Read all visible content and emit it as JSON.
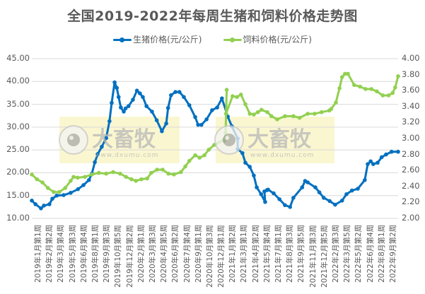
{
  "title": "全国2019-2022年每周生猪和饲料价格走势图",
  "legend": [
    {
      "label": "生猪价格(元/公斤)",
      "color": "#0070C0"
    },
    {
      "label": "饲料价格(元/公斤)",
      "color": "#92D050"
    }
  ],
  "watermark": {
    "text": "大畜牧",
    "url_text": "www.dxumu.com"
  },
  "chart_data": {
    "type": "line",
    "title": "全国2019-2022年每周生猪和饲料价格走势图",
    "xlabel": "",
    "ylabel_left": "生猪价格(元/公斤)",
    "ylabel_right": "饲料价格(元/公斤)",
    "ylim_left": [
      10,
      45
    ],
    "ylim_right": [
      2.0,
      4.0
    ],
    "yticks_left": [
      "10.00",
      "15.00",
      "20.00",
      "25.00",
      "30.00",
      "35.00",
      "40.00",
      "45.00"
    ],
    "yticks_right": [
      "2.00",
      "2.20",
      "2.40",
      "2.60",
      "2.80",
      "3.00",
      "3.20",
      "3.40",
      "3.60",
      "3.80",
      "4.00"
    ],
    "grid": true,
    "legend_position": "top",
    "x_tick_labels": [
      "2019年1月第1周",
      "2019年2月第2周",
      "2019年3月第4周",
      "2019年5月第3周",
      "2019年6月第4周",
      "2019年8月第1周",
      "2019年9月第3周",
      "2019年10月第5周",
      "2019年12月第2周",
      "2020年2月第1周",
      "2020年3月第3周",
      "2020年4月第5周",
      "2020年6月第2周",
      "2020年7月第4周",
      "2020年9月第1周",
      "2020年10月第3周",
      "2020年12月第1周",
      "2021年1月第2周",
      "2021年3月第1周",
      "2021年4月第2周",
      "2021年5月第4周",
      "2021年7月第1周",
      "2021年8月第3周",
      "2021年9月第5周",
      "2021年11月第3周",
      "2021年12月第5周",
      "2022年2月第3周",
      "2022年3月第5周",
      "2022年5月第2周",
      "2022年6月第4周",
      "2022年8月第1周",
      "2022年9月第2周"
    ],
    "series": [
      {
        "name": "生猪价格(元/公斤)",
        "axis": "left",
        "color": "#0070C0",
        "x_frac": [
          0,
          0.01,
          0.025,
          0.033,
          0.048,
          0.056,
          0.068,
          0.087,
          0.106,
          0.126,
          0.141,
          0.156,
          0.164,
          0.172,
          0.18,
          0.191,
          0.203,
          0.212,
          0.218,
          0.226,
          0.232,
          0.237,
          0.243,
          0.251,
          0.256,
          0.264,
          0.276,
          0.287,
          0.295,
          0.303,
          0.313,
          0.328,
          0.341,
          0.355,
          0.367,
          0.372,
          0.38,
          0.392,
          0.403,
          0.415,
          0.43,
          0.446,
          0.454,
          0.463,
          0.477,
          0.492,
          0.506,
          0.519,
          0.535,
          0.546,
          0.562,
          0.562,
          0.575,
          0.583,
          0.595,
          0.606,
          0.614,
          0.626,
          0.637,
          0.635,
          0.642,
          0.645,
          0.66,
          0.676,
          0.691,
          0.705,
          0.714,
          0.738,
          0.746,
          0.753,
          0.774,
          0.785,
          0.797,
          0.813,
          0.828,
          0.847,
          0.859,
          0.874,
          0.89,
          0.909,
          0.917,
          0.925,
          0.932,
          0.944,
          0.955,
          0.967,
          0.982,
          1.0
        ],
        "values": [
          13.9,
          13.1,
          12.2,
          12.8,
          13.1,
          14.3,
          15.0,
          15.1,
          15.6,
          16.4,
          17.3,
          18.4,
          19.8,
          22.3,
          24.1,
          25.7,
          27.6,
          31.3,
          35.3,
          39.8,
          38.6,
          36.6,
          34.3,
          33.4,
          34.1,
          34.6,
          36.0,
          38.0,
          37.4,
          36.6,
          34.6,
          33.4,
          31.5,
          29.1,
          30.8,
          34.2,
          37.0,
          37.7,
          37.7,
          36.6,
          34.8,
          32.2,
          30.5,
          30.5,
          31.7,
          33.7,
          34.3,
          36.3,
          32.3,
          30.2,
          27.5,
          25.2,
          24.3,
          22.2,
          21.3,
          19.4,
          16.8,
          15.3,
          13.6,
          15.9,
          16.2,
          16.3,
          15.5,
          14.2,
          12.9,
          12.5,
          14.5,
          16.8,
          18.2,
          17.9,
          16.8,
          15.7,
          14.5,
          13.8,
          13.0,
          13.9,
          15.3,
          16.1,
          16.5,
          18.4,
          21.9,
          22.5,
          21.9,
          22.2,
          23.4,
          24.0,
          24.6,
          24.6
        ]
      },
      {
        "name": "饲料价格(元/公斤)",
        "axis": "right",
        "color": "#92D050",
        "x_frac": [
          0,
          0.014,
          0.029,
          0.044,
          0.06,
          0.075,
          0.091,
          0.106,
          0.114,
          0.125,
          0.145,
          0.164,
          0.183,
          0.203,
          0.222,
          0.241,
          0.257,
          0.272,
          0.284,
          0.299,
          0.315,
          0.326,
          0.342,
          0.357,
          0.373,
          0.388,
          0.407,
          0.419,
          0.43,
          0.446,
          0.458,
          0.471,
          0.483,
          0.498,
          0.523,
          0.526,
          0.529,
          0.532,
          0.53,
          0.548,
          0.56,
          0.571,
          0.583,
          0.595,
          0.606,
          0.617,
          0.627,
          0.643,
          0.654,
          0.67,
          0.691,
          0.714,
          0.731,
          0.753,
          0.772,
          0.791,
          0.812,
          0.817,
          0.83,
          0.84,
          0.847,
          0.855,
          0.863,
          0.88,
          0.896,
          0.911,
          0.927,
          0.942,
          0.958,
          0.974,
          0.985,
          0.992,
          1.0
        ],
        "values": [
          2.55,
          2.49,
          2.45,
          2.38,
          2.33,
          2.33,
          2.38,
          2.47,
          2.52,
          2.51,
          2.52,
          2.55,
          2.57,
          2.56,
          2.58,
          2.56,
          2.52,
          2.49,
          2.47,
          2.49,
          2.5,
          2.57,
          2.61,
          2.61,
          2.56,
          2.55,
          2.58,
          2.65,
          2.72,
          2.79,
          2.76,
          2.79,
          2.86,
          2.92,
          2.98,
          2.97,
          3.07,
          3.61,
          3.31,
          3.53,
          3.52,
          3.55,
          3.43,
          3.31,
          3.3,
          3.33,
          3.36,
          3.33,
          3.28,
          3.24,
          3.28,
          3.28,
          3.26,
          3.31,
          3.31,
          3.33,
          3.35,
          3.37,
          3.45,
          3.63,
          3.77,
          3.81,
          3.81,
          3.67,
          3.65,
          3.62,
          3.62,
          3.59,
          3.54,
          3.54,
          3.57,
          3.64,
          3.78
        ]
      }
    ]
  }
}
